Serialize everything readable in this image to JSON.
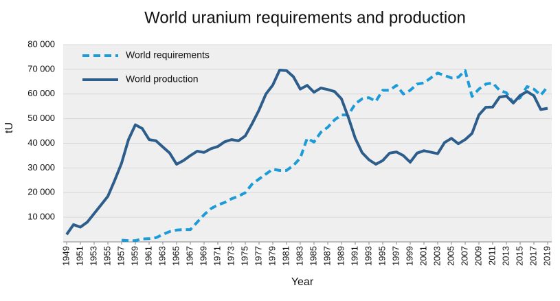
{
  "chart_data": {
    "type": "line",
    "title": "World uranium requirements and production",
    "x_label": "Year",
    "y_label": "tU",
    "x": [
      1949,
      1950,
      1951,
      1952,
      1953,
      1954,
      1955,
      1956,
      1957,
      1958,
      1959,
      1960,
      1961,
      1962,
      1963,
      1964,
      1965,
      1966,
      1967,
      1968,
      1969,
      1970,
      1971,
      1972,
      1973,
      1974,
      1975,
      1976,
      1977,
      1978,
      1979,
      1980,
      1981,
      1982,
      1983,
      1984,
      1985,
      1986,
      1987,
      1988,
      1989,
      1990,
      1991,
      1992,
      1993,
      1994,
      1995,
      1996,
      1997,
      1998,
      1999,
      2000,
      2001,
      2002,
      2003,
      2004,
      2005,
      2006,
      2007,
      2008,
      2009,
      2010,
      2011,
      2012,
      2013,
      2014,
      2015,
      2016,
      2017,
      2018,
      2019
    ],
    "series": [
      {
        "name": "World requirements",
        "color": "#1b9bd7",
        "dashed": true,
        "values": [
          null,
          null,
          null,
          null,
          null,
          null,
          null,
          null,
          700,
          500,
          500,
          1200,
          1300,
          1700,
          3000,
          4200,
          4800,
          5000,
          5000,
          8000,
          11000,
          13500,
          15000,
          16000,
          17500,
          18500,
          20000,
          23500,
          25500,
          27500,
          29500,
          29000,
          29000,
          31000,
          34000,
          42000,
          40500,
          44500,
          46500,
          49500,
          51500,
          51500,
          56000,
          58000,
          58500,
          57000,
          61500,
          61500,
          63500,
          60000,
          61500,
          64000,
          64500,
          66500,
          68500,
          67500,
          66500,
          66800,
          69500,
          59000,
          62000,
          64000,
          64500,
          61500,
          60500,
          56500,
          58500,
          63000,
          62000,
          59500,
          63000
        ]
      },
      {
        "name": "World production",
        "color": "#2d5d8b",
        "dashed": false,
        "values": [
          3000,
          7000,
          6000,
          8000,
          11500,
          15000,
          18500,
          25000,
          32000,
          41500,
          47500,
          46000,
          41500,
          41000,
          38500,
          36000,
          31500,
          33000,
          35000,
          36800,
          36300,
          37800,
          38700,
          40600,
          41500,
          41000,
          43000,
          48000,
          53500,
          60000,
          63600,
          69700,
          69500,
          67000,
          62000,
          63500,
          60700,
          62400,
          61800,
          61000,
          58000,
          50500,
          42000,
          36200,
          33300,
          31500,
          33000,
          36000,
          36500,
          35000,
          32300,
          36000,
          37000,
          36400,
          35800,
          40300,
          42000,
          39800,
          41500,
          44000,
          51500,
          54600,
          54700,
          58700,
          59200,
          56300,
          59400,
          61000,
          59300,
          53700,
          54200
        ]
      }
    ],
    "xlim": [
      1949,
      2019
    ],
    "xticks": [
      1949,
      1951,
      1953,
      1955,
      1957,
      1959,
      1961,
      1963,
      1965,
      1967,
      1969,
      1971,
      1973,
      1975,
      1977,
      1979,
      1981,
      1983,
      1985,
      1987,
      1989,
      1991,
      1993,
      1995,
      1997,
      1999,
      2001,
      2003,
      2005,
      2007,
      2009,
      2011,
      2013,
      2015,
      2017,
      2019
    ],
    "ylim": [
      0,
      80000
    ],
    "yticks": [
      {
        "value": 10000,
        "label": "10 000"
      },
      {
        "value": 20000,
        "label": "20 000"
      },
      {
        "value": 30000,
        "label": "30 000"
      },
      {
        "value": 40000,
        "label": "40 000"
      },
      {
        "value": 50000,
        "label": "50 000"
      },
      {
        "value": 60000,
        "label": "60 000"
      },
      {
        "value": 70000,
        "label": "70 000"
      },
      {
        "value": 80000,
        "label": "80 000"
      }
    ],
    "grid": true,
    "legend": "top-left"
  }
}
